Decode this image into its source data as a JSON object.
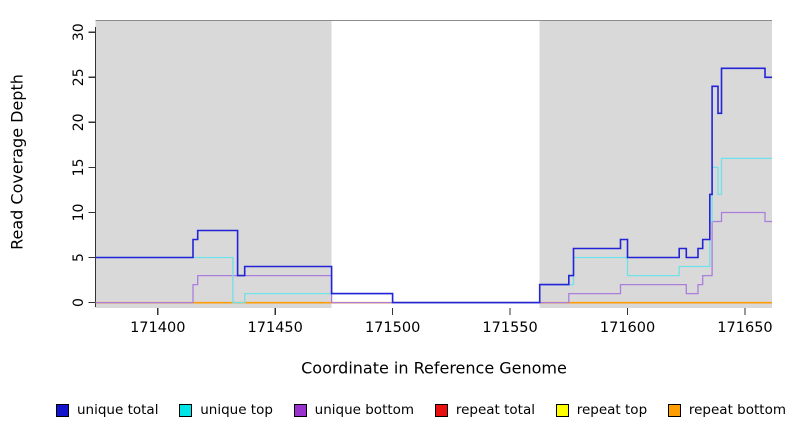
{
  "chart_data": {
    "type": "line",
    "step": true,
    "title": "",
    "xlabel": "Coordinate in Reference Genome",
    "ylabel": "Read Coverage Depth",
    "xlim": [
      171373.5,
      171661.5
    ],
    "ylim": [
      -0.6,
      31.3
    ],
    "grid": false,
    "background_color": "#FFFFFF",
    "panel_color": "#D9D9D9",
    "top_rule_color": "#8C8C8C",
    "axis_color": "#333333",
    "x_ticks": [
      {
        "value": 171400,
        "label": "171400"
      },
      {
        "value": 171450,
        "label": "171450"
      },
      {
        "value": 171500,
        "label": "171500"
      },
      {
        "value": 171550,
        "label": "171550"
      },
      {
        "value": 171600,
        "label": "171600"
      },
      {
        "value": 171650,
        "label": "171650"
      }
    ],
    "y_ticks": [
      {
        "value": 0,
        "label": "0"
      },
      {
        "value": 5,
        "label": "5"
      },
      {
        "value": 10,
        "label": "10"
      },
      {
        "value": 15,
        "label": "15"
      },
      {
        "value": 20,
        "label": "20"
      },
      {
        "value": 25,
        "label": "25"
      },
      {
        "value": 30,
        "label": "30"
      }
    ],
    "shaded_regions": [
      {
        "x0": 171373.5,
        "x1": 171474.0,
        "color": "#D9D9D9"
      },
      {
        "x0": 171562.6,
        "x1": 171661.5,
        "color": "#D9D9D9"
      }
    ],
    "draw_order": [
      "repeat top",
      "repeat total",
      "repeat bottom",
      "unique bottom",
      "unique top",
      "unique total"
    ],
    "series": [
      {
        "name": "unique total",
        "color": "#2323D7",
        "line_width": 1.6,
        "points": [
          [
            171373.5,
            5
          ],
          [
            171415,
            7
          ],
          [
            171417,
            8
          ],
          [
            171434,
            3
          ],
          [
            171437,
            4
          ],
          [
            171474,
            1
          ],
          [
            171500,
            0
          ],
          [
            171562.6,
            2
          ],
          [
            171575,
            3
          ],
          [
            171577,
            6
          ],
          [
            171597,
            7
          ],
          [
            171600,
            5
          ],
          [
            171622,
            6
          ],
          [
            171625,
            5
          ],
          [
            171630,
            6
          ],
          [
            171632,
            7
          ],
          [
            171635,
            12
          ],
          [
            171636,
            24
          ],
          [
            171638.5,
            21
          ],
          [
            171640,
            26
          ],
          [
            171658.5,
            25
          ],
          [
            171661.5,
            25
          ]
        ]
      },
      {
        "name": "unique top",
        "color": "#70E1E9",
        "line_width": 1.3,
        "points": [
          [
            171373.5,
            5
          ],
          [
            171432,
            0
          ],
          [
            171437,
            1
          ],
          [
            171500,
            0
          ],
          [
            171562.6,
            2
          ],
          [
            171577,
            5
          ],
          [
            171600,
            3
          ],
          [
            171622,
            4
          ],
          [
            171635,
            9
          ],
          [
            171636,
            15
          ],
          [
            171638.5,
            12
          ],
          [
            171640,
            16
          ],
          [
            171661.5,
            16
          ]
        ]
      },
      {
        "name": "unique bottom",
        "color": "#AB7EDB",
        "line_width": 1.3,
        "points": [
          [
            171373.5,
            0
          ],
          [
            171415,
            2
          ],
          [
            171417,
            3
          ],
          [
            171474,
            0
          ],
          [
            171575,
            1
          ],
          [
            171597,
            2
          ],
          [
            171625,
            1
          ],
          [
            171630,
            2
          ],
          [
            171632,
            3
          ],
          [
            171636,
            9
          ],
          [
            171640,
            10
          ],
          [
            171658.5,
            9
          ],
          [
            171661.5,
            9
          ]
        ]
      },
      {
        "name": "repeat total",
        "color": "#E81010",
        "line_width": 1.3,
        "points": [
          [
            171373.5,
            0
          ],
          [
            171661.5,
            0
          ]
        ]
      },
      {
        "name": "repeat top",
        "color": "#FFFF00",
        "line_width": 1.3,
        "points": [
          [
            171373.5,
            0
          ],
          [
            171661.5,
            0
          ]
        ]
      },
      {
        "name": "repeat bottom",
        "color": "#FF9E00",
        "line_width": 1.5,
        "points": [
          [
            171373.5,
            0
          ],
          [
            171661.5,
            0
          ]
        ]
      }
    ]
  },
  "legend": {
    "items": [
      {
        "label": "unique total",
        "color": "#1414CE"
      },
      {
        "label": "unique top",
        "color": "#00E6E6"
      },
      {
        "label": "unique bottom",
        "color": "#9A32CD"
      },
      {
        "label": "repeat total",
        "color": "#E81010"
      },
      {
        "label": "repeat top",
        "color": "#FFFF00"
      },
      {
        "label": "repeat bottom",
        "color": "#FF9E00"
      }
    ]
  }
}
